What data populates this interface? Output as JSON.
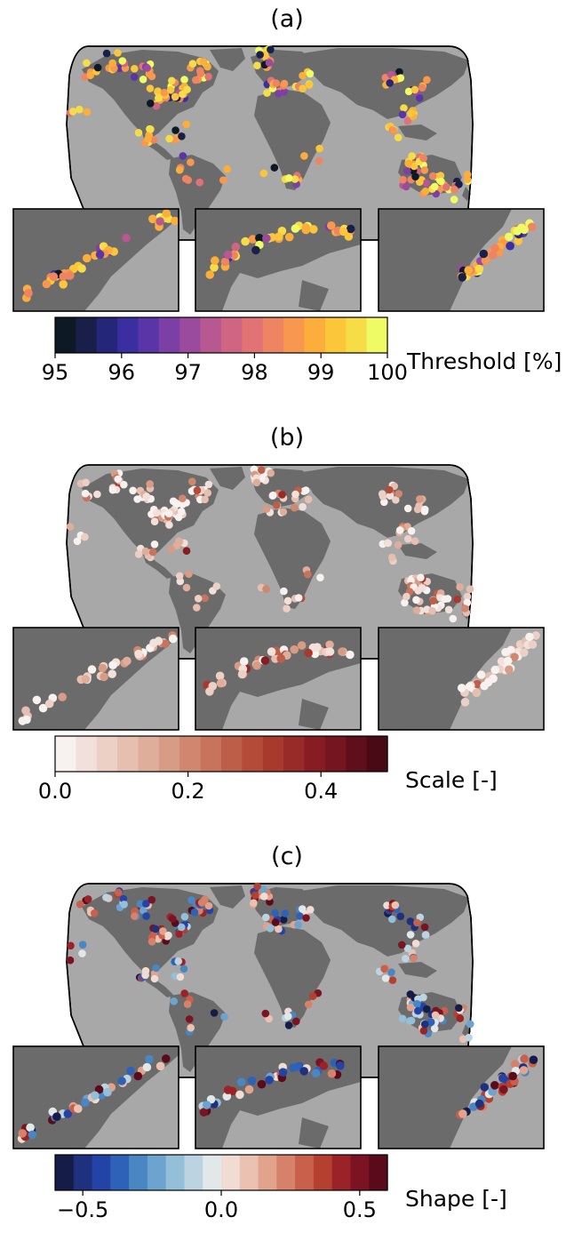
{
  "panels": [
    {
      "label": "(a)",
      "colorbar": {
        "title": "Threshold [%]",
        "min": 95,
        "max": 100,
        "ticks": [
          "95",
          "96",
          "97",
          "98",
          "99",
          "100"
        ],
        "tick_values": [
          95,
          96,
          97,
          98,
          99,
          100
        ],
        "colormap": "plasma",
        "colors": [
          "#0d1a26",
          "#1a1f4a",
          "#24267a",
          "#3a2ea0",
          "#5a35a8",
          "#7b3fa6",
          "#9a4b9d",
          "#b85890",
          "#cf6583",
          "#e27374",
          "#ef8462",
          "#f7984e",
          "#fbae3c",
          "#fbc63a",
          "#f6dd48",
          "#eefb64"
        ]
      },
      "insets": [
        "North America east coast",
        "Europe",
        "East Asia"
      ]
    },
    {
      "label": "(b)",
      "colorbar": {
        "title": "Scale [-]",
        "min": 0.0,
        "max": 0.5,
        "ticks": [
          "0.0",
          "0.2",
          "0.4"
        ],
        "tick_values": [
          0.0,
          0.2,
          0.4
        ],
        "colormap": "reds",
        "colors": [
          "#f7f1ef",
          "#f2e0db",
          "#ecd0c6",
          "#e6bfb0",
          "#dfae9a",
          "#d89b85",
          "#d0876f",
          "#c8735b",
          "#bd5f48",
          "#b34b38",
          "#a73a2d",
          "#982a27",
          "#871d23",
          "#741520",
          "#5f0f1b",
          "#4a0a15"
        ]
      },
      "insets": [
        "North America east coast",
        "Europe",
        "East Asia"
      ]
    },
    {
      "label": "(c)",
      "colorbar": {
        "title": "Shape [-]",
        "min": -0.6,
        "max": 0.6,
        "ticks": [
          "−0.5",
          "0.0",
          "0.5"
        ],
        "tick_values": [
          -0.5,
          0.0,
          0.5
        ],
        "colormap": "diverging blue-red",
        "colors": [
          "#161c48",
          "#1f307e",
          "#2344a6",
          "#2e62b8",
          "#4a86c2",
          "#6ca4cf",
          "#93bfd9",
          "#bcd4e2",
          "#e2e7ea",
          "#f0dcd3",
          "#ebc1b1",
          "#e2a38d",
          "#d6826a",
          "#c9604b",
          "#b6402f",
          "#9b2327",
          "#7c1322",
          "#5a0b1b"
        ]
      },
      "insets": [
        "North America east coast",
        "Europe",
        "East Asia"
      ]
    }
  ]
}
